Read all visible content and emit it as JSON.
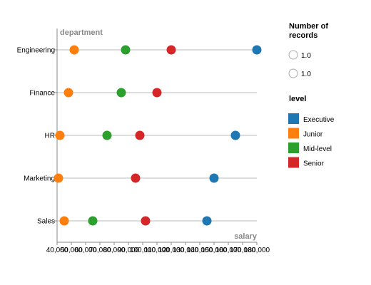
{
  "chart_data": {
    "type": "scatter",
    "x_axis": {
      "title": "salary",
      "min": 40000,
      "max": 180000,
      "tick_step": 10000,
      "ticks": [
        "40,000",
        "50,000",
        "60,000",
        "70,000",
        "80,000",
        "90,000",
        "100,000",
        "110,000",
        "120,000",
        "130,000",
        "140,000",
        "150,000",
        "160,000",
        "170,000",
        "180,000"
      ]
    },
    "y_axis": {
      "title": "department",
      "categories": [
        "Engineering",
        "Finance",
        "HR",
        "Marketing",
        "Sales"
      ]
    },
    "grid": "horizontal rule per department",
    "series": [
      {
        "name": "Executive",
        "color": "#1f77b4",
        "points": [
          {
            "department": "Engineering",
            "salary": 180000
          },
          {
            "department": "HR",
            "salary": 165000
          },
          {
            "department": "Marketing",
            "salary": 150000
          },
          {
            "department": "Sales",
            "salary": 145000
          }
        ]
      },
      {
        "name": "Junior",
        "color": "#ff7f0e",
        "points": [
          {
            "department": "Engineering",
            "salary": 52000
          },
          {
            "department": "Finance",
            "salary": 48000
          },
          {
            "department": "HR",
            "salary": 42000
          },
          {
            "department": "Marketing",
            "salary": 41000
          },
          {
            "department": "Sales",
            "salary": 45000
          }
        ]
      },
      {
        "name": "Mid-level",
        "color": "#2ca02c",
        "points": [
          {
            "department": "Engineering",
            "salary": 88000
          },
          {
            "department": "Finance",
            "salary": 85000
          },
          {
            "department": "HR",
            "salary": 75000
          },
          {
            "department": "Sales",
            "salary": 65000
          }
        ]
      },
      {
        "name": "Senior",
        "color": "#d62728",
        "points": [
          {
            "department": "Engineering",
            "salary": 120000
          },
          {
            "department": "Finance",
            "salary": 110000
          },
          {
            "department": "HR",
            "salary": 98000
          },
          {
            "department": "Marketing",
            "salary": 95000
          },
          {
            "department": "Sales",
            "salary": 102000
          }
        ]
      }
    ],
    "legend": {
      "placement": "right",
      "size_title": "Number of records",
      "size_entries": [
        "1.0",
        "1.0"
      ],
      "color_title": "level"
    }
  }
}
